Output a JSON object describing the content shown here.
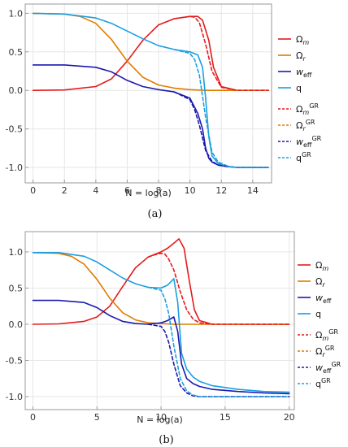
{
  "chart_data": [
    {
      "type": "line",
      "caption": "(a)",
      "xlabel": "N = log(a)",
      "xlim": [
        -0.5,
        15.2
      ],
      "ylim": [
        -1.2,
        1.12
      ],
      "xticks": [
        0,
        2,
        4,
        6,
        8,
        10,
        12,
        14
      ],
      "yticks": [
        1.0,
        0.5,
        0.0,
        -0.5,
        -1.0
      ],
      "ytick_labels": [
        "1.0",
        "0.5",
        "0.0",
        "-0.5",
        "-1.0"
      ],
      "grid": true,
      "legend_position": "right",
      "legend": [
        "Ωm",
        "Ωr",
        "weff",
        "q",
        "ΩmGR",
        "ΩrGR",
        "weffGR",
        "qGR"
      ],
      "colors": {
        "omega_m": "#e41a1c",
        "omega_r": "#e07b00",
        "w_eff": "#1a1aaf",
        "q": "#1a9fe0"
      },
      "series": [
        {
          "key": "omega_m",
          "dashed": false,
          "x": [
            0,
            2,
            4,
            5,
            6,
            7,
            8,
            9,
            10,
            10.5,
            10.8,
            11.2,
            11.5,
            12,
            13,
            14,
            15
          ],
          "y": [
            0.0,
            0.005,
            0.05,
            0.15,
            0.38,
            0.65,
            0.85,
            0.93,
            0.96,
            0.96,
            0.91,
            0.65,
            0.3,
            0.05,
            0.0,
            0.0,
            0.0
          ]
        },
        {
          "key": "omega_r",
          "dashed": false,
          "x": [
            0,
            2,
            3,
            4,
            5,
            6,
            7,
            8,
            9,
            10,
            11,
            12,
            15
          ],
          "y": [
            1.0,
            0.99,
            0.96,
            0.87,
            0.66,
            0.38,
            0.17,
            0.07,
            0.03,
            0.01,
            0.0,
            0.0,
            0.0
          ]
        },
        {
          "key": "w_eff",
          "dashed": false,
          "x": [
            0,
            2,
            4,
            5,
            6,
            7,
            8,
            9,
            10,
            10.5,
            10.8,
            11,
            11.2,
            11.4,
            11.8,
            12.5,
            13,
            14,
            15
          ],
          "y": [
            0.33,
            0.33,
            0.3,
            0.24,
            0.13,
            0.05,
            0.01,
            -0.02,
            -0.1,
            -0.3,
            -0.5,
            -0.75,
            -0.88,
            -0.93,
            -0.97,
            -0.99,
            -1.0,
            -1.0,
            -1.0
          ]
        },
        {
          "key": "q",
          "dashed": false,
          "x": [
            0,
            2,
            4,
            5,
            6,
            7,
            8,
            9,
            10,
            10.5,
            10.8,
            11,
            11.2,
            11.4,
            11.8,
            12.5,
            13,
            14,
            15
          ],
          "y": [
            1.0,
            0.99,
            0.94,
            0.87,
            0.77,
            0.67,
            0.58,
            0.53,
            0.5,
            0.46,
            0.3,
            -0.1,
            -0.6,
            -0.85,
            -0.95,
            -0.99,
            -1.0,
            -1.0,
            -1.0
          ]
        },
        {
          "key": "omega_m",
          "dashed": true,
          "x": [
            9,
            10,
            10.3,
            10.6,
            11,
            11.4,
            12,
            13,
            15
          ],
          "y": [
            0.93,
            0.96,
            0.95,
            0.88,
            0.6,
            0.25,
            0.04,
            0.0,
            0.0
          ]
        },
        {
          "key": "w_eff",
          "dashed": true,
          "x": [
            9,
            10,
            10.3,
            10.6,
            11,
            11.4,
            11.8,
            12.5,
            13,
            15
          ],
          "y": [
            -0.02,
            -0.12,
            -0.25,
            -0.45,
            -0.78,
            -0.92,
            -0.97,
            -0.99,
            -1.0,
            -1.0
          ]
        },
        {
          "key": "q",
          "dashed": true,
          "x": [
            9,
            10,
            10.3,
            10.6,
            11,
            11.4,
            11.8,
            12.5,
            13,
            15
          ],
          "y": [
            0.53,
            0.48,
            0.4,
            0.2,
            -0.35,
            -0.8,
            -0.93,
            -0.99,
            -1.0,
            -1.0
          ]
        }
      ]
    },
    {
      "type": "line",
      "caption": "(b)",
      "xlabel": "N = log(a)",
      "xlim": [
        -0.6,
        20.4
      ],
      "ylim": [
        -1.18,
        1.28
      ],
      "xticks": [
        0,
        5,
        10,
        15,
        20
      ],
      "yticks": [
        1.0,
        0.5,
        0.0,
        -0.5,
        -1.0
      ],
      "ytick_labels": [
        "1.0",
        "0.5",
        "0.0",
        "-0.5",
        "-1.0"
      ],
      "grid": true,
      "legend_position": "right",
      "legend": [
        "Ωm",
        "Ωr",
        "weff",
        "q",
        "ΩmGR",
        "ΩrGR",
        "weffGR",
        "qGR"
      ],
      "colors": {
        "omega_m": "#e41a1c",
        "omega_r": "#e07b00",
        "w_eff": "#1a1aaf",
        "q": "#1a9fe0"
      },
      "series": [
        {
          "key": "omega_m",
          "dashed": false,
          "x": [
            0,
            2,
            4,
            5,
            6,
            7,
            8,
            9,
            10,
            10.5,
            11,
            11.4,
            11.8,
            12.2,
            12.6,
            13,
            14,
            16,
            20
          ],
          "y": [
            0.0,
            0.005,
            0.04,
            0.1,
            0.25,
            0.52,
            0.78,
            0.93,
            1.0,
            1.05,
            1.12,
            1.18,
            1.05,
            0.6,
            0.2,
            0.05,
            0.0,
            0.0,
            0.0
          ]
        },
        {
          "key": "omega_r",
          "dashed": false,
          "x": [
            0,
            2,
            3,
            4,
            5,
            6,
            7,
            8,
            9,
            10,
            11,
            12,
            20
          ],
          "y": [
            0.99,
            0.98,
            0.94,
            0.83,
            0.62,
            0.36,
            0.16,
            0.06,
            0.02,
            0.01,
            0.0,
            0.0,
            0.0
          ]
        },
        {
          "key": "w_eff",
          "dashed": false,
          "x": [
            0,
            2,
            4,
            5,
            6,
            7,
            8,
            9,
            10,
            10.5,
            11,
            11.3,
            11.6,
            12,
            12.5,
            13,
            14,
            16,
            18,
            20
          ],
          "y": [
            0.33,
            0.33,
            0.3,
            0.23,
            0.12,
            0.04,
            0.01,
            0.0,
            0.02,
            0.05,
            0.1,
            -0.1,
            -0.55,
            -0.75,
            -0.82,
            -0.86,
            -0.9,
            -0.93,
            -0.95,
            -0.96
          ]
        },
        {
          "key": "q",
          "dashed": false,
          "x": [
            0,
            2,
            4,
            5,
            6,
            7,
            8,
            9,
            10,
            10.5,
            11,
            11.3,
            11.6,
            12,
            12.5,
            13,
            14,
            16,
            18,
            20
          ],
          "y": [
            0.99,
            0.99,
            0.94,
            0.86,
            0.75,
            0.64,
            0.56,
            0.51,
            0.5,
            0.54,
            0.63,
            0.3,
            -0.4,
            -0.62,
            -0.73,
            -0.79,
            -0.85,
            -0.9,
            -0.93,
            -0.94
          ]
        },
        {
          "key": "omega_m",
          "dashed": true,
          "x": [
            9,
            9.5,
            10,
            10.3,
            10.6,
            11,
            11.5,
            12,
            12.5,
            13,
            14,
            20
          ],
          "y": [
            0.93,
            0.96,
            0.98,
            0.97,
            0.9,
            0.75,
            0.45,
            0.2,
            0.07,
            0.02,
            0.0,
            0.0
          ]
        },
        {
          "key": "w_eff",
          "dashed": true,
          "x": [
            9,
            10,
            10.3,
            10.6,
            11,
            11.5,
            12,
            12.5,
            13,
            14,
            20
          ],
          "y": [
            0.0,
            -0.03,
            -0.1,
            -0.25,
            -0.55,
            -0.85,
            -0.95,
            -0.99,
            -1.0,
            -1.0,
            -1.0
          ]
        },
        {
          "key": "q",
          "dashed": true,
          "x": [
            9,
            10,
            10.3,
            10.6,
            11,
            11.5,
            12,
            12.5,
            13,
            14,
            20
          ],
          "y": [
            0.51,
            0.47,
            0.35,
            0.15,
            -0.3,
            -0.75,
            -0.92,
            -0.98,
            -1.0,
            -1.0,
            -1.0
          ]
        }
      ]
    }
  ]
}
